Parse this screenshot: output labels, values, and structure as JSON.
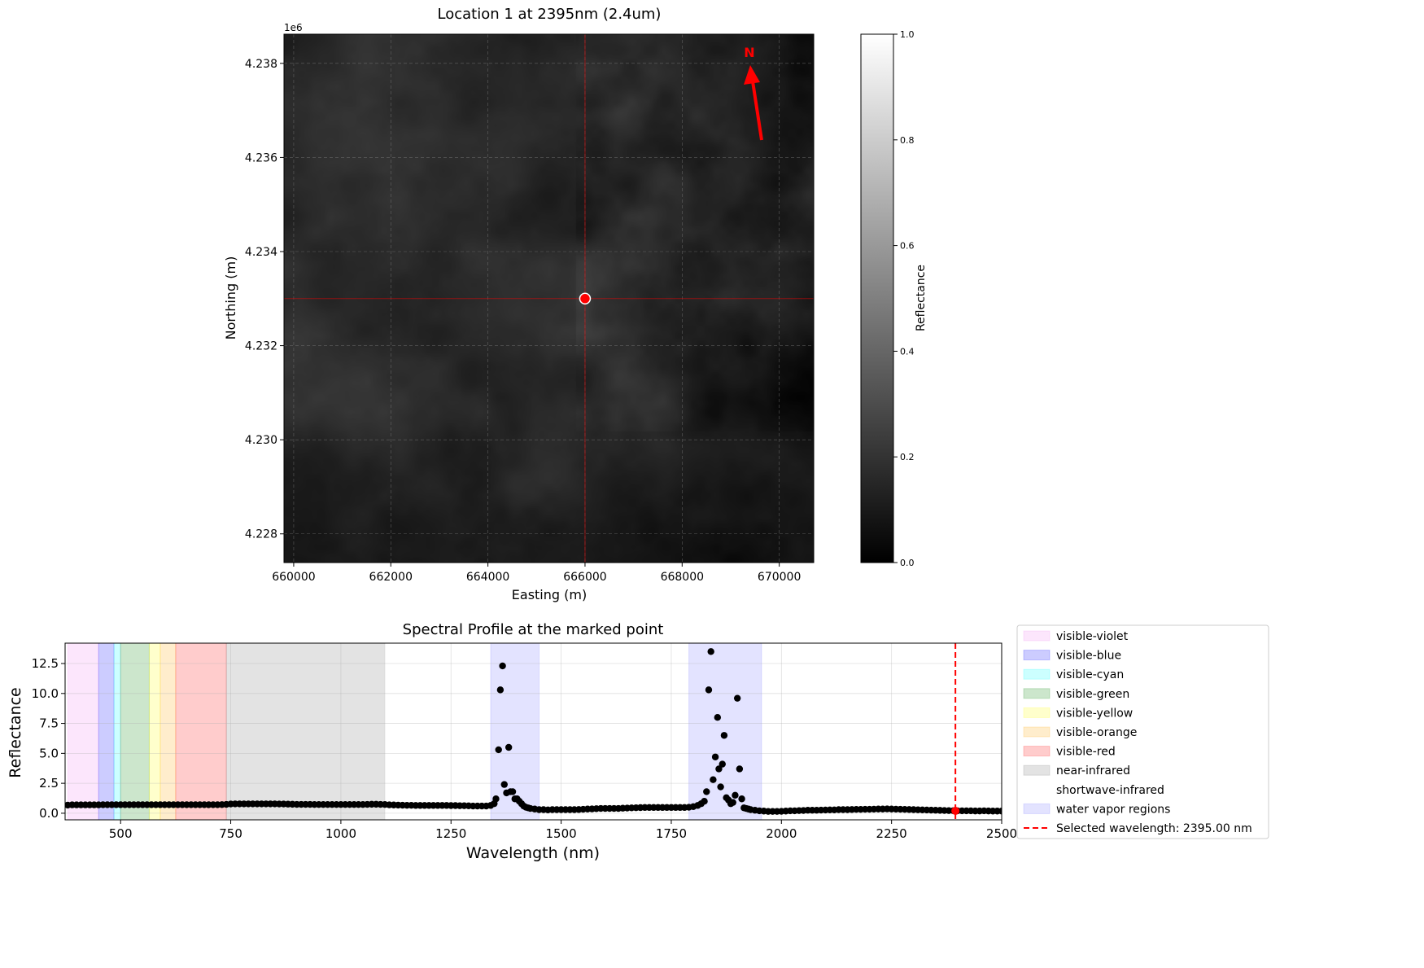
{
  "chart_data": [
    {
      "type": "heatmap",
      "title": "Location 1 at 2395nm (2.4um)",
      "xlabel": "Easting (m)",
      "ylabel": "Northing (m)",
      "xlim": [
        659800,
        670710
      ],
      "ylim": [
        4227390,
        4238620
      ],
      "xticks": [
        660000,
        662000,
        664000,
        666000,
        668000,
        670000
      ],
      "xtick_labels": [
        "660000",
        "662000",
        "664000",
        "666000",
        "668000",
        "670000"
      ],
      "yticks": [
        4228000,
        4230000,
        4232000,
        4234000,
        4236000,
        4238000
      ],
      "ytick_labels": [
        "4.228",
        "4.230",
        "4.232",
        "4.234",
        "4.236",
        "4.238"
      ],
      "y_offset_label": "1e6",
      "grid": true,
      "colormap": "gray",
      "colorbar": {
        "label": "Reflectance",
        "range": [
          0.0,
          1.0
        ],
        "ticks": [
          "0.0",
          "0.2",
          "0.4",
          "0.6",
          "0.8",
          "1.0"
        ]
      },
      "marked_point": {
        "easting": 666000,
        "northing": 4233000,
        "color": "#ff0000"
      },
      "north_arrow": {
        "label": "N",
        "color": "#ff0000"
      }
    },
    {
      "type": "scatter",
      "title": "Spectral Profile at the marked point",
      "xlabel": "Wavelength (nm)",
      "ylabel": "Reflectance",
      "xlim": [
        374,
        2500
      ],
      "ylim": [
        -0.55,
        14.2
      ],
      "xticks": [
        500,
        750,
        1000,
        1250,
        1500,
        1750,
        2000,
        2250,
        2500
      ],
      "yticks": [
        0.0,
        2.5,
        5.0,
        7.5,
        10.0,
        12.5
      ],
      "ytick_labels": [
        "0.0",
        "2.5",
        "5.0",
        "7.5",
        "10.0",
        "12.5"
      ],
      "grid": true,
      "legend_placement": "outside-right",
      "regions": [
        {
          "name": "visible-violet",
          "range": [
            380,
            450
          ],
          "color": "#ee82ee"
        },
        {
          "name": "visible-blue",
          "range": [
            450,
            485
          ],
          "color": "#0000ff"
        },
        {
          "name": "visible-cyan",
          "range": [
            485,
            500
          ],
          "color": "#00ffff"
        },
        {
          "name": "visible-green",
          "range": [
            500,
            565
          ],
          "color": "#008000"
        },
        {
          "name": "visible-yellow",
          "range": [
            565,
            590
          ],
          "color": "#ffff00"
        },
        {
          "name": "visible-orange",
          "range": [
            590,
            625
          ],
          "color": "#ffa500"
        },
        {
          "name": "visible-red",
          "range": [
            625,
            740
          ],
          "color": "#ff0000"
        },
        {
          "name": "near-infrared",
          "range": [
            740,
            1100
          ],
          "color": "#808080"
        },
        {
          "name": "shortwave-infrared",
          "range": [
            1100,
            2500
          ],
          "color": "#ffffff"
        },
        {
          "name": "water vapor regions",
          "ranges": [
            [
              1340,
              1450
            ],
            [
              1790,
              1955
            ]
          ],
          "color": "#0000ff"
        }
      ],
      "selected_wavelength": {
        "label": "Selected wavelength: 2395.00 nm",
        "value": 2395,
        "reflectance": 0.2,
        "color": "#ff0000"
      },
      "points": [
        [
          380,
          0.68
        ],
        [
          390,
          0.7
        ],
        [
          400,
          0.7
        ],
        [
          410,
          0.7
        ],
        [
          420,
          0.7
        ],
        [
          430,
          0.7
        ],
        [
          440,
          0.7
        ],
        [
          450,
          0.7
        ],
        [
          460,
          0.71
        ],
        [
          470,
          0.71
        ],
        [
          480,
          0.71
        ],
        [
          490,
          0.71
        ],
        [
          500,
          0.71
        ],
        [
          510,
          0.71
        ],
        [
          520,
          0.71
        ],
        [
          530,
          0.71
        ],
        [
          540,
          0.71
        ],
        [
          550,
          0.71
        ],
        [
          560,
          0.71
        ],
        [
          570,
          0.71
        ],
        [
          580,
          0.71
        ],
        [
          590,
          0.71
        ],
        [
          600,
          0.71
        ],
        [
          610,
          0.71
        ],
        [
          620,
          0.71
        ],
        [
          630,
          0.71
        ],
        [
          640,
          0.71
        ],
        [
          650,
          0.71
        ],
        [
          660,
          0.71
        ],
        [
          670,
          0.71
        ],
        [
          680,
          0.71
        ],
        [
          690,
          0.71
        ],
        [
          700,
          0.71
        ],
        [
          710,
          0.71
        ],
        [
          720,
          0.71
        ],
        [
          730,
          0.72
        ],
        [
          740,
          0.74
        ],
        [
          750,
          0.77
        ],
        [
          760,
          0.78
        ],
        [
          770,
          0.78
        ],
        [
          780,
          0.78
        ],
        [
          790,
          0.78
        ],
        [
          800,
          0.78
        ],
        [
          810,
          0.78
        ],
        [
          820,
          0.78
        ],
        [
          830,
          0.78
        ],
        [
          840,
          0.78
        ],
        [
          850,
          0.78
        ],
        [
          860,
          0.77
        ],
        [
          870,
          0.77
        ],
        [
          880,
          0.76
        ],
        [
          890,
          0.75
        ],
        [
          900,
          0.74
        ],
        [
          910,
          0.74
        ],
        [
          920,
          0.74
        ],
        [
          930,
          0.74
        ],
        [
          940,
          0.73
        ],
        [
          950,
          0.73
        ],
        [
          960,
          0.73
        ],
        [
          970,
          0.73
        ],
        [
          980,
          0.73
        ],
        [
          990,
          0.73
        ],
        [
          1000,
          0.73
        ],
        [
          1010,
          0.73
        ],
        [
          1020,
          0.73
        ],
        [
          1030,
          0.73
        ],
        [
          1040,
          0.73
        ],
        [
          1050,
          0.73
        ],
        [
          1060,
          0.74
        ],
        [
          1070,
          0.75
        ],
        [
          1080,
          0.75
        ],
        [
          1090,
          0.74
        ],
        [
          1100,
          0.73
        ],
        [
          1110,
          0.7
        ],
        [
          1120,
          0.69
        ],
        [
          1130,
          0.68
        ],
        [
          1140,
          0.67
        ],
        [
          1150,
          0.66
        ],
        [
          1160,
          0.66
        ],
        [
          1170,
          0.65
        ],
        [
          1180,
          0.65
        ],
        [
          1190,
          0.65
        ],
        [
          1200,
          0.65
        ],
        [
          1210,
          0.65
        ],
        [
          1220,
          0.65
        ],
        [
          1230,
          0.65
        ],
        [
          1240,
          0.65
        ],
        [
          1250,
          0.64
        ],
        [
          1260,
          0.64
        ],
        [
          1270,
          0.63
        ],
        [
          1280,
          0.63
        ],
        [
          1290,
          0.62
        ],
        [
          1300,
          0.6
        ],
        [
          1310,
          0.6
        ],
        [
          1320,
          0.6
        ],
        [
          1330,
          0.6
        ],
        [
          1340,
          0.65
        ],
        [
          1348,
          0.8
        ],
        [
          1352,
          1.2
        ],
        [
          1358,
          5.3
        ],
        [
          1362,
          10.3
        ],
        [
          1367,
          12.3
        ],
        [
          1371,
          2.4
        ],
        [
          1376,
          1.7
        ],
        [
          1381,
          5.5
        ],
        [
          1385,
          1.8
        ],
        [
          1390,
          1.8
        ],
        [
          1395,
          1.2
        ],
        [
          1400,
          1.2
        ],
        [
          1405,
          1.0
        ],
        [
          1410,
          0.8
        ],
        [
          1415,
          0.6
        ],
        [
          1420,
          0.5
        ],
        [
          1425,
          0.45
        ],
        [
          1430,
          0.4
        ],
        [
          1440,
          0.35
        ],
        [
          1450,
          0.3
        ],
        [
          1460,
          0.3
        ],
        [
          1470,
          0.28
        ],
        [
          1480,
          0.3
        ],
        [
          1490,
          0.3
        ],
        [
          1500,
          0.3
        ],
        [
          1510,
          0.3
        ],
        [
          1520,
          0.3
        ],
        [
          1530,
          0.3
        ],
        [
          1540,
          0.31
        ],
        [
          1550,
          0.33
        ],
        [
          1560,
          0.35
        ],
        [
          1570,
          0.36
        ],
        [
          1580,
          0.38
        ],
        [
          1590,
          0.4
        ],
        [
          1600,
          0.4
        ],
        [
          1610,
          0.4
        ],
        [
          1620,
          0.4
        ],
        [
          1630,
          0.4
        ],
        [
          1640,
          0.42
        ],
        [
          1650,
          0.43
        ],
        [
          1660,
          0.45
        ],
        [
          1670,
          0.46
        ],
        [
          1680,
          0.47
        ],
        [
          1690,
          0.48
        ],
        [
          1700,
          0.48
        ],
        [
          1710,
          0.48
        ],
        [
          1720,
          0.48
        ],
        [
          1730,
          0.48
        ],
        [
          1740,
          0.48
        ],
        [
          1750,
          0.48
        ],
        [
          1760,
          0.48
        ],
        [
          1770,
          0.48
        ],
        [
          1780,
          0.48
        ],
        [
          1790,
          0.5
        ],
        [
          1800,
          0.55
        ],
        [
          1810,
          0.65
        ],
        [
          1818,
          0.8
        ],
        [
          1825,
          1.0
        ],
        [
          1830,
          1.8
        ],
        [
          1835,
          10.3
        ],
        [
          1840,
          13.5
        ],
        [
          1845,
          2.8
        ],
        [
          1850,
          4.7
        ],
        [
          1855,
          8.0
        ],
        [
          1858,
          3.7
        ],
        [
          1862,
          2.2
        ],
        [
          1866,
          4.1
        ],
        [
          1870,
          6.5
        ],
        [
          1875,
          1.3
        ],
        [
          1880,
          1.1
        ],
        [
          1885,
          0.8
        ],
        [
          1890,
          0.9
        ],
        [
          1895,
          1.5
        ],
        [
          1900,
          9.6
        ],
        [
          1905,
          3.7
        ],
        [
          1910,
          1.2
        ],
        [
          1915,
          0.45
        ],
        [
          1920,
          0.4
        ],
        [
          1925,
          0.35
        ],
        [
          1930,
          0.3
        ],
        [
          1940,
          0.25
        ],
        [
          1950,
          0.2
        ],
        [
          1960,
          0.18
        ],
        [
          1970,
          0.15
        ],
        [
          1980,
          0.15
        ],
        [
          1990,
          0.15
        ],
        [
          2000,
          0.16
        ],
        [
          2010,
          0.18
        ],
        [
          2020,
          0.2
        ],
        [
          2030,
          0.2
        ],
        [
          2040,
          0.22
        ],
        [
          2050,
          0.23
        ],
        [
          2060,
          0.25
        ],
        [
          2070,
          0.25
        ],
        [
          2080,
          0.25
        ],
        [
          2090,
          0.26
        ],
        [
          2100,
          0.27
        ],
        [
          2110,
          0.28
        ],
        [
          2120,
          0.28
        ],
        [
          2130,
          0.3
        ],
        [
          2140,
          0.3
        ],
        [
          2150,
          0.3
        ],
        [
          2160,
          0.31
        ],
        [
          2170,
          0.32
        ],
        [
          2180,
          0.32
        ],
        [
          2190,
          0.33
        ],
        [
          2200,
          0.33
        ],
        [
          2210,
          0.34
        ],
        [
          2220,
          0.35
        ],
        [
          2230,
          0.35
        ],
        [
          2240,
          0.36
        ],
        [
          2250,
          0.35
        ],
        [
          2260,
          0.34
        ],
        [
          2270,
          0.33
        ],
        [
          2280,
          0.32
        ],
        [
          2290,
          0.31
        ],
        [
          2300,
          0.3
        ],
        [
          2310,
          0.29
        ],
        [
          2320,
          0.28
        ],
        [
          2330,
          0.27
        ],
        [
          2340,
          0.26
        ],
        [
          2350,
          0.25
        ],
        [
          2360,
          0.24
        ],
        [
          2370,
          0.23
        ],
        [
          2380,
          0.22
        ],
        [
          2390,
          0.21
        ],
        [
          2400,
          0.2
        ],
        [
          2410,
          0.2
        ],
        [
          2420,
          0.2
        ],
        [
          2430,
          0.2
        ],
        [
          2440,
          0.19
        ],
        [
          2450,
          0.19
        ],
        [
          2460,
          0.2
        ],
        [
          2470,
          0.19
        ],
        [
          2480,
          0.18
        ],
        [
          2490,
          0.18
        ],
        [
          2500,
          0.18
        ]
      ]
    }
  ]
}
